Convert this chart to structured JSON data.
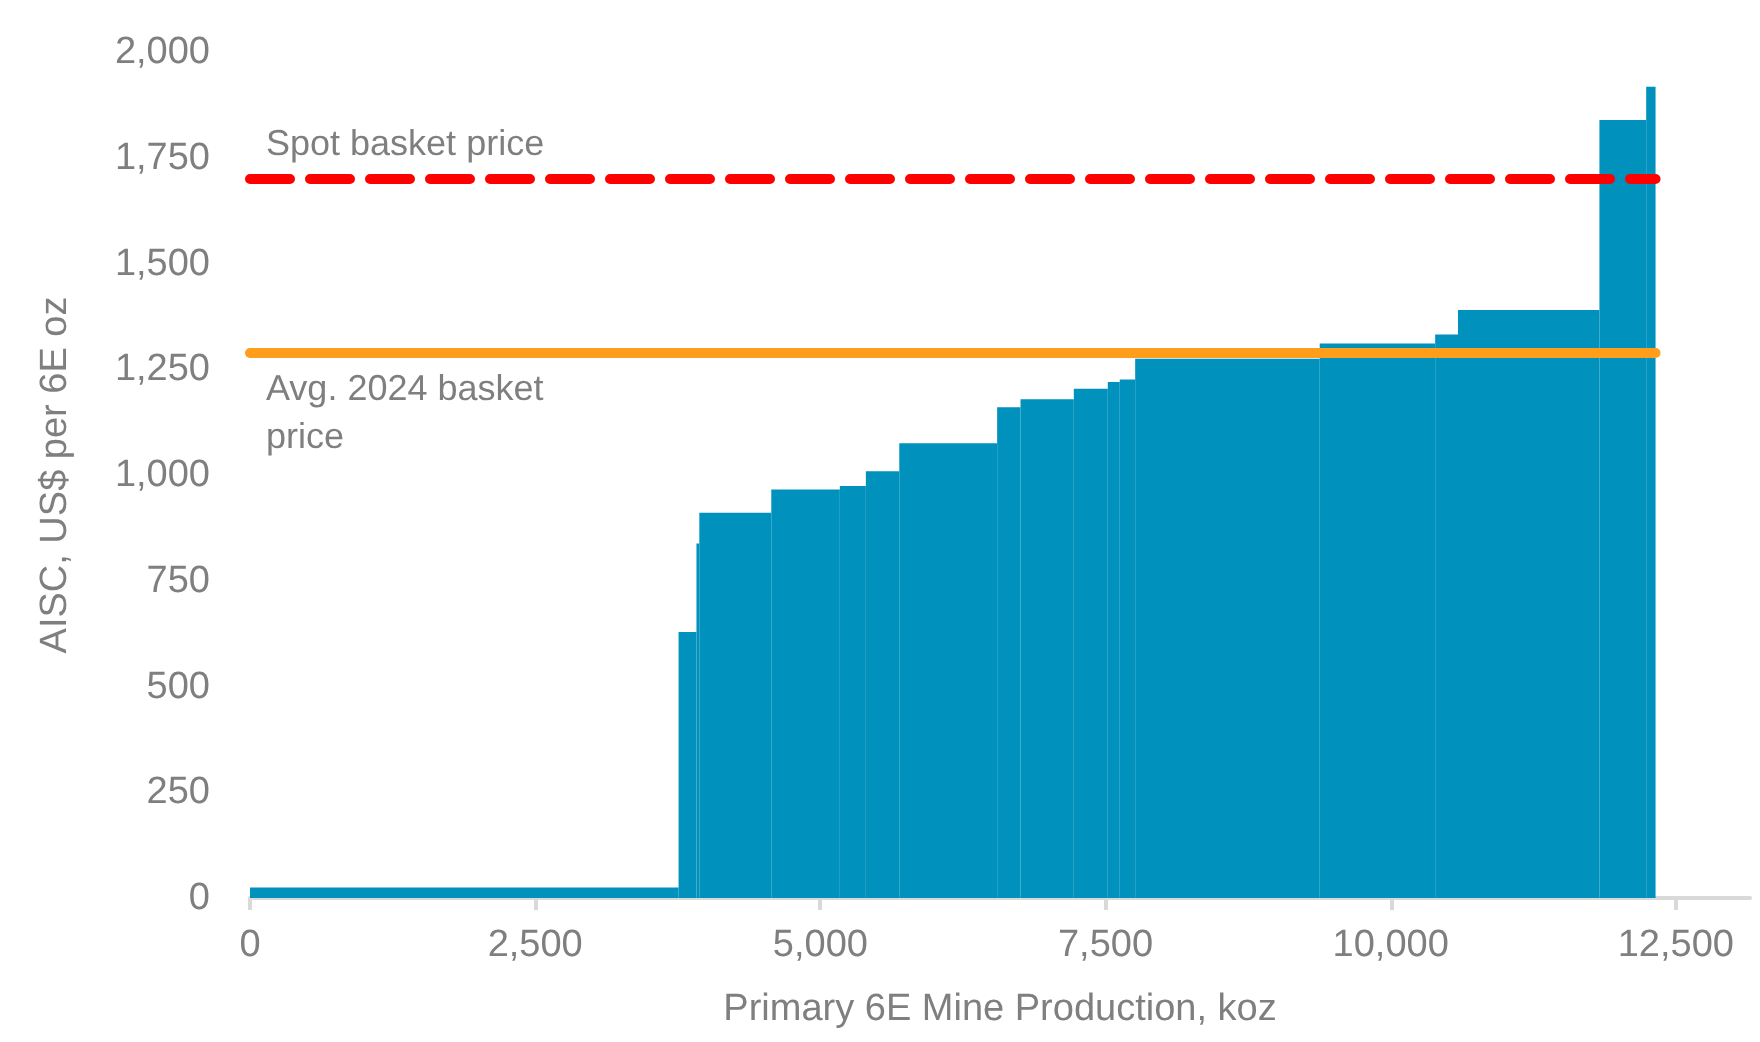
{
  "chart_data": {
    "type": "histogram",
    "xlabel": "Primary 6E Mine Production, koz",
    "ylabel": "AISC, US$ per 6E oz",
    "bins": [
      0,
      3757,
      3914,
      3939,
      4570,
      5171,
      5399,
      5692,
      6550,
      6755,
      7222,
      7520,
      7625,
      7760,
      9378,
      10390,
      10590,
      11830,
      12240,
      12322
    ],
    "values": [
      25,
      629,
      838,
      911,
      966,
      974,
      1009,
      1075,
      1160,
      1179,
      1204,
      1220,
      1226,
      1275,
      1311,
      1332,
      1390,
      1839,
      1918
    ],
    "color": "#0091bd",
    "xlim": [
      0,
      13150
    ],
    "xticks": [
      {
        "value": 0,
        "label": "0"
      },
      {
        "value": 2500,
        "label": "2,500"
      },
      {
        "value": 5000,
        "label": "5,000"
      },
      {
        "value": 7500,
        "label": "7,500"
      },
      {
        "value": 10000,
        "label": "10,000"
      },
      {
        "value": 12500,
        "label": "12,500"
      }
    ],
    "ylim": [
      0,
      2000
    ],
    "yticks": [
      {
        "value": 0,
        "label": "0"
      },
      {
        "value": 250,
        "label": "250"
      },
      {
        "value": 500,
        "label": "500"
      },
      {
        "value": 750,
        "label": "750"
      },
      {
        "value": 1000,
        "label": "1,000"
      },
      {
        "value": 1250,
        "label": "1,250"
      },
      {
        "value": 1500,
        "label": "1,500"
      },
      {
        "value": 1750,
        "label": "1,750"
      },
      {
        "value": 2000,
        "label": "2,000"
      }
    ],
    "ref_lines": [
      {
        "axis": "y",
        "value": 1700,
        "label": "Spot basket price",
        "color": "#ff0000",
        "line_style": "dashed"
      },
      {
        "axis": "y",
        "value": 1290,
        "label": "Avg. 2024 basket price",
        "color": "#ff9e1b",
        "line_style": "solid"
      }
    ],
    "grid": false
  }
}
